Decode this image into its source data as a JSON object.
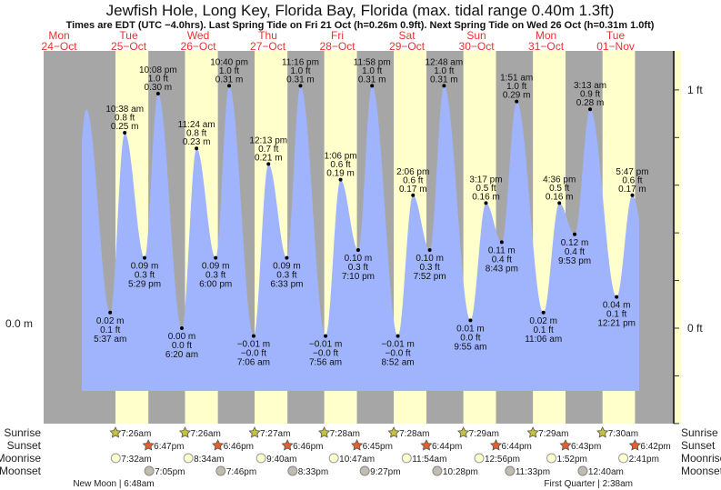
{
  "chart_data": {
    "type": "area",
    "title": "Jewfish Hole, Long Key, Florida Bay, Florida (max. tidal range 0.40m 1.3ft)",
    "subtitle": "Times are EDT (UTC −4.0hrs). Last Spring Tide on Fri 21 Oct (h=0.26m 0.9ft). Next Spring Tide on Wed 26 Oct (h=0.31m 1.0ft)",
    "left_axis_label": "0.0 m",
    "right_axis_ticks": [
      {
        "ft": 1,
        "label": "1 ft"
      },
      {
        "ft": 0,
        "label": "0 ft"
      }
    ],
    "right_axis_minor_step_ft": 0.2,
    "days": [
      {
        "dow": "Mon",
        "date": "24−Oct"
      },
      {
        "dow": "Tue",
        "date": "25−Oct"
      },
      {
        "dow": "Wed",
        "date": "26−Oct"
      },
      {
        "dow": "Thu",
        "date": "27−Oct"
      },
      {
        "dow": "Fri",
        "date": "28−Oct"
      },
      {
        "dow": "Sat",
        "date": "29−Oct"
      },
      {
        "dow": "Sun",
        "date": "30−Oct"
      },
      {
        "dow": "Mon",
        "date": "31−Oct"
      },
      {
        "dow": "Tue",
        "date": "01−Nov"
      }
    ],
    "tides": [
      {
        "type": "low",
        "hour": 29.62,
        "m": "0.02 m",
        "ft": "0.1 ft",
        "time": "5:37 am",
        "v": 0.02
      },
      {
        "type": "high",
        "hour": 34.63,
        "m": "0.25 m",
        "ft": "0.8 ft",
        "time": "10:38 am",
        "v": 0.25
      },
      {
        "type": "low",
        "hour": 41.48,
        "m": "0.09 m",
        "ft": "0.3 ft",
        "time": "5:29 pm",
        "v": 0.09
      },
      {
        "type": "high",
        "hour": 46.13,
        "m": "0.30 m",
        "ft": "1.0 ft",
        "time": "10:08 pm",
        "v": 0.3
      },
      {
        "type": "low",
        "hour": 54.33,
        "m": "0.00 m",
        "ft": "0.0 ft",
        "time": "6:20 am",
        "v": 0.0
      },
      {
        "type": "high",
        "hour": 59.4,
        "m": "0.23 m",
        "ft": "0.8 ft",
        "time": "11:24 am",
        "v": 0.23
      },
      {
        "type": "low",
        "hour": 66.0,
        "m": "0.09 m",
        "ft": "0.3 ft",
        "time": "6:00 pm",
        "v": 0.09
      },
      {
        "type": "high",
        "hour": 70.67,
        "m": "0.31 m",
        "ft": "1.0 ft",
        "time": "10:40 pm",
        "v": 0.31
      },
      {
        "type": "low",
        "hour": 79.1,
        "m": "−0.01 m",
        "ft": "−0.0 ft",
        "time": "7:06 am",
        "v": -0.01
      },
      {
        "type": "high",
        "hour": 84.22,
        "m": "0.21 m",
        "ft": "0.7 ft",
        "time": "12:13 pm",
        "v": 0.21
      },
      {
        "type": "low",
        "hour": 90.55,
        "m": "0.09 m",
        "ft": "0.3 ft",
        "time": "6:33 pm",
        "v": 0.09
      },
      {
        "type": "high",
        "hour": 95.27,
        "m": "0.31 m",
        "ft": "1.0 ft",
        "time": "11:16 pm",
        "v": 0.31
      },
      {
        "type": "low",
        "hour": 103.93,
        "m": "−0.01 m",
        "ft": "−0.0 ft",
        "time": "7:56 am",
        "v": -0.01
      },
      {
        "type": "high",
        "hour": 109.1,
        "m": "0.19 m",
        "ft": "0.6 ft",
        "time": "1:06 pm",
        "v": 0.19
      },
      {
        "type": "low",
        "hour": 115.17,
        "m": "0.10 m",
        "ft": "0.3 ft",
        "time": "7:10 pm",
        "v": 0.1
      },
      {
        "type": "high",
        "hour": 119.97,
        "m": "0.31 m",
        "ft": "1.0 ft",
        "time": "11:58 pm",
        "v": 0.31
      },
      {
        "type": "low",
        "hour": 128.87,
        "m": "−0.01 m",
        "ft": "−0.0 ft",
        "time": "8:52 am",
        "v": -0.01
      },
      {
        "type": "high",
        "hour": 134.1,
        "m": "0.17 m",
        "ft": "0.6 ft",
        "time": "2:06 pm",
        "v": 0.17
      },
      {
        "type": "low",
        "hour": 139.87,
        "m": "0.10 m",
        "ft": "0.3 ft",
        "time": "7:52 pm",
        "v": 0.1
      },
      {
        "type": "high",
        "hour": 144.8,
        "m": "0.31 m",
        "ft": "1.0 ft",
        "time": "12:48 am",
        "v": 0.31
      },
      {
        "type": "low",
        "hour": 153.92,
        "m": "0.01 m",
        "ft": "0.0 ft",
        "time": "9:55 am",
        "v": 0.01
      },
      {
        "type": "high",
        "hour": 159.28,
        "m": "0.16 m",
        "ft": "0.5 ft",
        "time": "3:17 pm",
        "v": 0.16
      },
      {
        "type": "low",
        "hour": 164.72,
        "m": "0.11 m",
        "ft": "0.4 ft",
        "time": "8:43 pm",
        "v": 0.11
      },
      {
        "type": "high",
        "hour": 169.85,
        "m": "0.29 m",
        "ft": "1.0 ft",
        "time": "1:51 am",
        "v": 0.29
      },
      {
        "type": "low",
        "hour": 179.1,
        "m": "0.02 m",
        "ft": "0.1 ft",
        "time": "11:06 am",
        "v": 0.02
      },
      {
        "type": "high",
        "hour": 184.6,
        "m": "0.16 m",
        "ft": "0.5 ft",
        "time": "4:36 pm",
        "v": 0.16
      },
      {
        "type": "low",
        "hour": 189.88,
        "m": "0.12 m",
        "ft": "0.4 ft",
        "time": "9:53 pm",
        "v": 0.12
      },
      {
        "type": "high",
        "hour": 195.22,
        "m": "0.28 m",
        "ft": "0.9 ft",
        "time": "3:13 am",
        "v": 0.28
      },
      {
        "type": "low",
        "hour": 204.35,
        "m": "0.04 m",
        "ft": "0.1 ft",
        "time": "12:21 pm",
        "v": 0.04
      },
      {
        "type": "high",
        "hour": 209.78,
        "m": "0.17 m",
        "ft": "0.6 ft",
        "time": "5:47 pm",
        "v": 0.17
      }
    ],
    "sun": [
      {
        "rise": "7:26am",
        "rh": 31.43,
        "set": "6:47pm",
        "sh": 42.78
      },
      {
        "rise": "7:26am",
        "rh": 55.43,
        "set": "6:46pm",
        "sh": 66.77
      },
      {
        "rise": "7:27am",
        "rh": 79.45,
        "set": "6:46pm",
        "sh": 90.77
      },
      {
        "rise": "7:28am",
        "rh": 103.47,
        "set": "6:45pm",
        "sh": 114.75
      },
      {
        "rise": "7:28am",
        "rh": 127.47,
        "set": "6:44pm",
        "sh": 138.73
      },
      {
        "rise": "7:29am",
        "rh": 151.48,
        "set": "6:44pm",
        "sh": 162.73
      },
      {
        "rise": "7:29am",
        "rh": 175.48,
        "set": "6:43pm",
        "sh": 186.72
      },
      {
        "rise": "7:30am",
        "rh": 199.5,
        "set": "6:42pm",
        "sh": 210.7
      }
    ],
    "moonrise": [
      {
        "t": "7:32am",
        "h": 31.53
      },
      {
        "t": "8:34am",
        "h": 56.57
      },
      {
        "t": "9:40am",
        "h": 81.67
      },
      {
        "t": "10:47am",
        "h": 106.78
      },
      {
        "t": "11:54am",
        "h": 131.9
      },
      {
        "t": "12:56pm",
        "h": 156.93
      },
      {
        "t": "1:52pm",
        "h": 181.87
      },
      {
        "t": "2:41pm",
        "h": 206.68
      }
    ],
    "moonset": [
      {
        "t": "7:05pm",
        "h": 43.08
      },
      {
        "t": "7:46pm",
        "h": 67.77
      },
      {
        "t": "8:33pm",
        "h": 92.55
      },
      {
        "t": "9:27pm",
        "h": 117.45
      },
      {
        "t": "10:28pm",
        "h": 142.47
      },
      {
        "t": "11:33pm",
        "h": 167.55
      },
      {
        "t": "12:40am",
        "h": 192.67
      }
    ],
    "phases": [
      {
        "text": "New Moon | 6:48am",
        "h": 30.8
      },
      {
        "text": "First Quarter | 2:38am",
        "h": 194.63
      }
    ],
    "row_labels": {
      "sunrise": "Sunrise",
      "sunset": "Sunset",
      "moonrise": "Moonrise",
      "moonset": "Moonset"
    },
    "colors": {
      "water": "#a0b4fd",
      "night": "#a6a6a6",
      "day": "#ffffcc",
      "dayname": "#e8322f",
      "sunrise": "#c8c040",
      "sunset": "#e06030",
      "moonrise": "#ffffd0",
      "moonset": "#c0bcb0"
    }
  }
}
